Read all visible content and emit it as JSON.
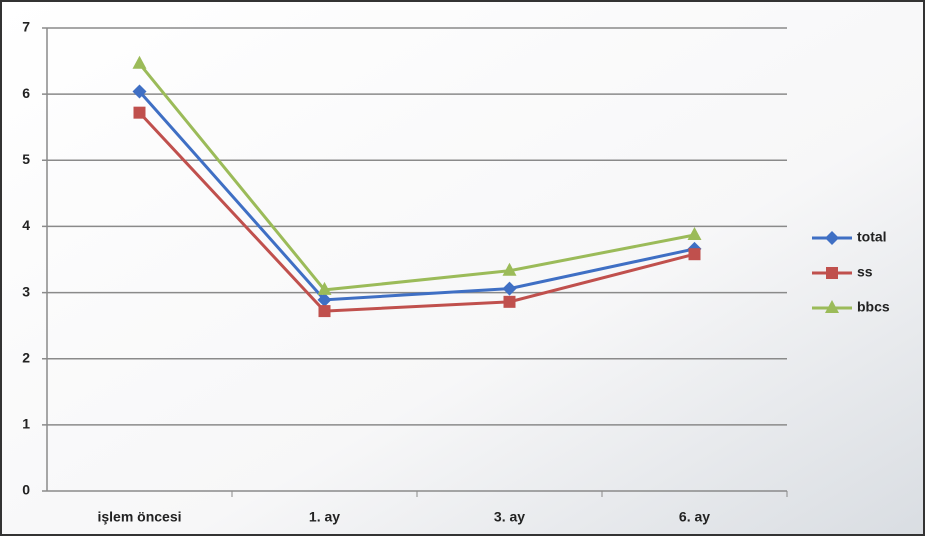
{
  "chart_data": {
    "type": "line",
    "categories": [
      "işlem öncesi",
      "1. ay",
      "3. ay",
      "6. ay"
    ],
    "series": [
      {
        "name": "total",
        "color": "#3f6fc4",
        "marker": "diamond",
        "values": [
          6.04,
          2.89,
          3.06,
          3.66
        ]
      },
      {
        "name": "ss",
        "color": "#c0504d",
        "marker": "square",
        "values": [
          5.72,
          2.72,
          2.86,
          3.58
        ]
      },
      {
        "name": "bbcs",
        "color": "#9bbb59",
        "marker": "triangle",
        "values": [
          6.46,
          3.04,
          3.33,
          3.87
        ]
      }
    ],
    "ylim": [
      0,
      7
    ],
    "yticks": [
      0,
      1,
      2,
      3,
      4,
      5,
      6,
      7
    ],
    "grid": true,
    "legend": "right"
  }
}
